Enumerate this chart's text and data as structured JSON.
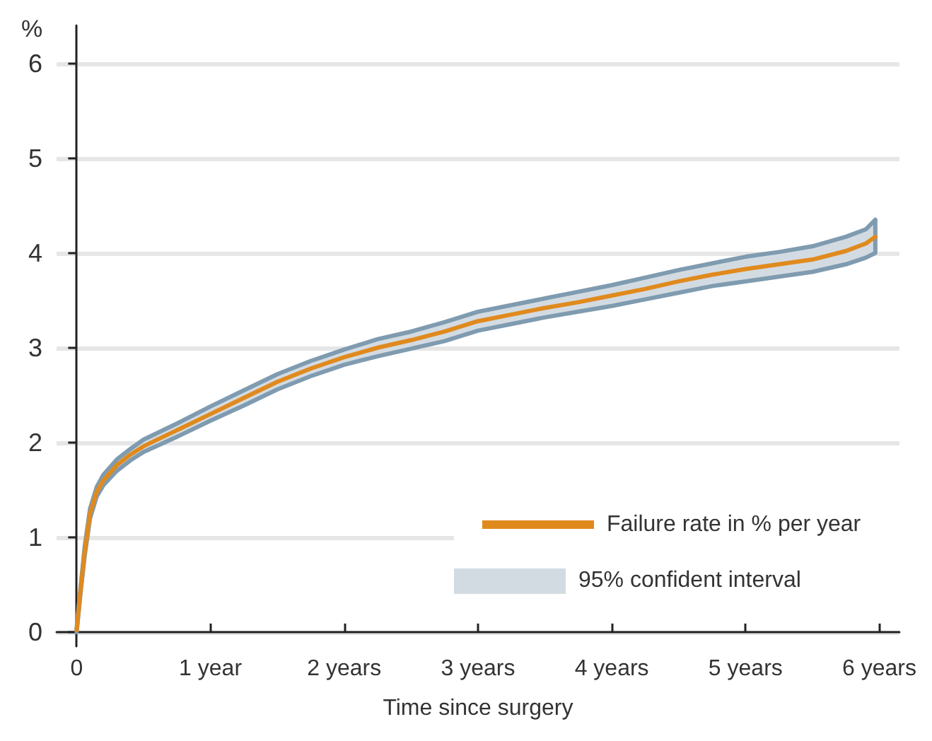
{
  "chart_data": {
    "type": "line",
    "xlabel": "Time since surgery",
    "ylabel": "%",
    "x": [
      0,
      0.03,
      0.06,
      0.1,
      0.15,
      0.2,
      0.3,
      0.4,
      0.5,
      0.75,
      1,
      1.25,
      1.5,
      1.75,
      2,
      2.25,
      2.5,
      2.75,
      3,
      3.25,
      3.5,
      3.75,
      4,
      4.25,
      4.5,
      4.75,
      5,
      5.25,
      5.5,
      5.75,
      5.9,
      5.97
    ],
    "series": [
      {
        "name": "Failure rate in % per year",
        "color": "#e08a1e",
        "values": [
          0.02,
          0.45,
          0.85,
          1.25,
          1.48,
          1.6,
          1.76,
          1.87,
          1.96,
          2.13,
          2.3,
          2.47,
          2.64,
          2.78,
          2.9,
          3.0,
          3.08,
          3.17,
          3.28,
          3.35,
          3.42,
          3.48,
          3.55,
          3.62,
          3.7,
          3.77,
          3.83,
          3.88,
          3.93,
          4.02,
          4.1,
          4.17
        ],
        "lower": [
          0.0,
          0.42,
          0.8,
          1.2,
          1.43,
          1.55,
          1.7,
          1.81,
          1.9,
          2.06,
          2.23,
          2.39,
          2.56,
          2.7,
          2.82,
          2.91,
          2.99,
          3.07,
          3.18,
          3.25,
          3.32,
          3.38,
          3.44,
          3.51,
          3.58,
          3.65,
          3.7,
          3.75,
          3.8,
          3.88,
          3.95,
          4.0
        ],
        "upper": [
          0.04,
          0.48,
          0.9,
          1.3,
          1.53,
          1.66,
          1.82,
          1.93,
          2.03,
          2.2,
          2.38,
          2.55,
          2.72,
          2.86,
          2.98,
          3.09,
          3.17,
          3.27,
          3.38,
          3.45,
          3.52,
          3.59,
          3.66,
          3.74,
          3.82,
          3.89,
          3.96,
          4.01,
          4.07,
          4.17,
          4.25,
          4.35
        ]
      }
    ],
    "annotations": [
      "95% confident interval"
    ],
    "xlim": [
      -0.15,
      6.15
    ],
    "xticks": [
      0,
      {
        "value": 1,
        "label": "1 year"
      },
      {
        "value": 2,
        "label": "2 years"
      },
      {
        "value": 3,
        "label": "3 years"
      },
      {
        "value": 4,
        "label": "4 years"
      },
      {
        "value": 5,
        "label": "5 years"
      },
      {
        "value": 6,
        "label": "6 years"
      }
    ],
    "ylim": [
      -0.15,
      6.4
    ],
    "yticks": [
      0,
      1,
      2,
      3,
      4,
      5,
      6
    ],
    "grid": "y",
    "legend": "bottom right"
  }
}
